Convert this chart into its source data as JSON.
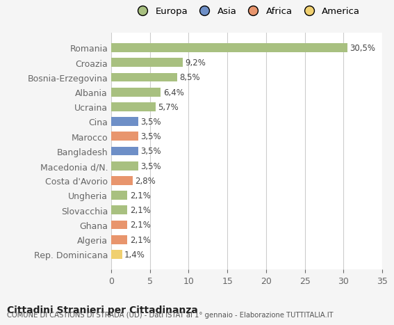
{
  "countries": [
    "Romania",
    "Croazia",
    "Bosnia-Erzegovina",
    "Albania",
    "Ucraina",
    "Cina",
    "Marocco",
    "Bangladesh",
    "Macedonia d/N.",
    "Costa d'Avorio",
    "Ungheria",
    "Slovacchia",
    "Ghana",
    "Algeria",
    "Rep. Dominicana"
  ],
  "values": [
    30.5,
    9.2,
    8.5,
    6.4,
    5.7,
    3.5,
    3.5,
    3.5,
    3.5,
    2.8,
    2.1,
    2.1,
    2.1,
    2.1,
    1.4
  ],
  "labels": [
    "30,5%",
    "9,2%",
    "8,5%",
    "6,4%",
    "5,7%",
    "3,5%",
    "3,5%",
    "3,5%",
    "3,5%",
    "2,8%",
    "2,1%",
    "2,1%",
    "2,1%",
    "2,1%",
    "1,4%"
  ],
  "colors": [
    "#a8c080",
    "#a8c080",
    "#a8c080",
    "#a8c080",
    "#a8c080",
    "#6e8fc7",
    "#e8956d",
    "#6e8fc7",
    "#a8c080",
    "#e8956d",
    "#a8c080",
    "#a8c080",
    "#e8956d",
    "#e8956d",
    "#f0d070"
  ],
  "legend_labels": [
    "Europa",
    "Asia",
    "Africa",
    "America"
  ],
  "legend_colors": [
    "#a8c080",
    "#6e8fc7",
    "#e8956d",
    "#f0d070"
  ],
  "xlim": [
    0,
    35
  ],
  "xticks": [
    0,
    5,
    10,
    15,
    20,
    25,
    30,
    35
  ],
  "title": "Cittadini Stranieri per Cittadinanza",
  "subtitle": "COMUNE DI CASTIONS DI STRADA (UD) - Dati ISTAT al 1° gennaio - Elaborazione TUTTITALIA.IT",
  "background_color": "#f5f5f5",
  "bar_background": "#ffffff"
}
